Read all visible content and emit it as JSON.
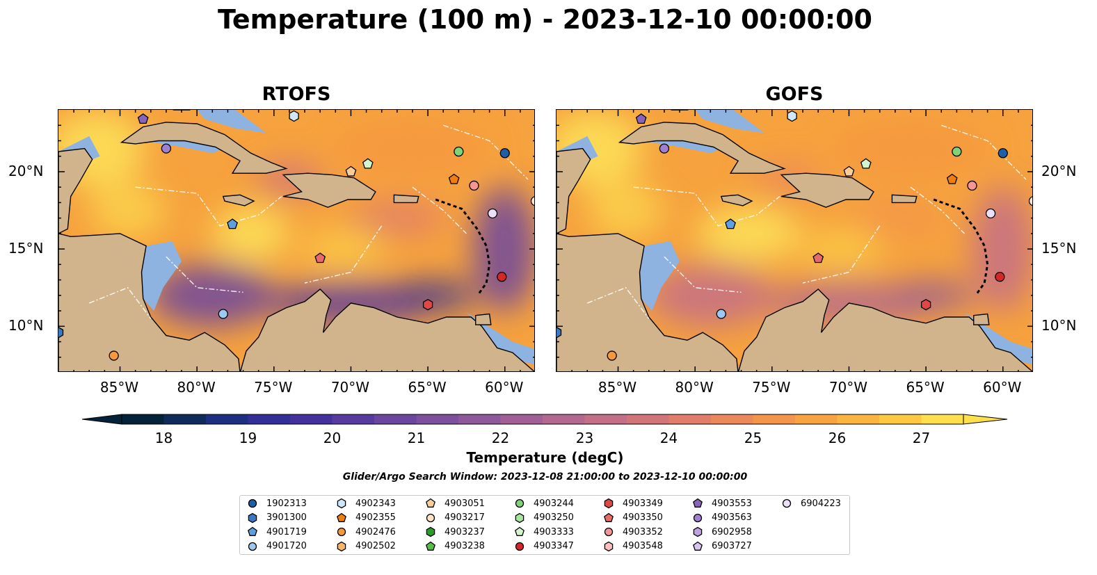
{
  "title": "Temperature (100 m) - 2023-12-10 00:00:00",
  "panels": [
    {
      "id": "rtofs",
      "title": "RTOFS"
    },
    {
      "id": "gofs",
      "title": "GOFS"
    }
  ],
  "map": {
    "lon_range": [
      -89,
      -58
    ],
    "lat_range": [
      7,
      24
    ],
    "x_ticks": [
      "85°W",
      "80°W",
      "75°W",
      "70°W",
      "65°W",
      "60°W"
    ],
    "x_tick_values": [
      -85,
      -80,
      -75,
      -70,
      -65,
      -60
    ],
    "y_ticks": [
      "20°N",
      "15°N",
      "10°N"
    ],
    "y_tick_values": [
      20,
      15,
      10
    ],
    "colors": {
      "land": "#d2b48c",
      "shallow_water": "#8fb3e0",
      "warm": "#f6a23e",
      "hot": "#fde35a"
    }
  },
  "colorbar": {
    "label": "Temperature (degC)",
    "ticks": [
      "18",
      "19",
      "20",
      "21",
      "22",
      "23",
      "24",
      "25",
      "26",
      "27"
    ],
    "min": 18,
    "max": 27,
    "step": 0.5,
    "colormap": [
      "#04233a",
      "#0e2b5a",
      "#1f2f80",
      "#332f96",
      "#45319c",
      "#583b9f",
      "#6b469f",
      "#7d4f9d",
      "#8f589b",
      "#a06096",
      "#b2688f",
      "#c36f87",
      "#d2757a",
      "#e07e6b",
      "#ec895a",
      "#f3954a",
      "#f8a342",
      "#fbb43f",
      "#fdc942",
      "#fde04c"
    ]
  },
  "search_window": "Glider/Argo Search Window: 2023-12-08 21:00:00 to 2023-12-10 00:00:00",
  "legend": [
    {
      "label": "1902313",
      "marker": "circle",
      "color": "#1f5fa8"
    },
    {
      "label": "3901300",
      "marker": "hexagon",
      "color": "#3a78c2"
    },
    {
      "label": "4901719",
      "marker": "pentagon",
      "color": "#5d9fe0"
    },
    {
      "label": "4901720",
      "marker": "circle",
      "color": "#9ec8ef"
    },
    {
      "label": "4902343",
      "marker": "hexagon",
      "color": "#cfe6fb"
    },
    {
      "label": "4902355",
      "marker": "pentagon",
      "color": "#f07d10"
    },
    {
      "label": "4902476",
      "marker": "circle",
      "color": "#f59a3c"
    },
    {
      "label": "4902502",
      "marker": "hexagon",
      "color": "#f9b56b"
    },
    {
      "label": "4903051",
      "marker": "pentagon",
      "color": "#fbcd99"
    },
    {
      "label": "4903217",
      "marker": "circle",
      "color": "#fde5c8"
    },
    {
      "label": "4903237",
      "marker": "hexagon",
      "color": "#2a9c2a"
    },
    {
      "label": "4903238",
      "marker": "pentagon",
      "color": "#55c045"
    },
    {
      "label": "4903244",
      "marker": "circle",
      "color": "#7fd477"
    },
    {
      "label": "4903250",
      "marker": "hexagon",
      "color": "#a8e6a0"
    },
    {
      "label": "4903333",
      "marker": "pentagon",
      "color": "#d2f5cc"
    },
    {
      "label": "4903347",
      "marker": "circle",
      "color": "#d62728"
    },
    {
      "label": "4903349",
      "marker": "hexagon",
      "color": "#e04848"
    },
    {
      "label": "4903350",
      "marker": "pentagon",
      "color": "#ea6a6a"
    },
    {
      "label": "4903352",
      "marker": "circle",
      "color": "#f39696"
    },
    {
      "label": "4903548",
      "marker": "hexagon",
      "color": "#f8c0c0"
    },
    {
      "label": "4903553",
      "marker": "pentagon",
      "color": "#8a63bf"
    },
    {
      "label": "4903563",
      "marker": "circle",
      "color": "#a07fd0"
    },
    {
      "label": "6902958",
      "marker": "hexagon",
      "color": "#bea2e2"
    },
    {
      "label": "6903727",
      "marker": "pentagon",
      "color": "#d8c4f0"
    },
    {
      "label": "6904223",
      "marker": "circle",
      "color": "#ecdff8"
    }
  ],
  "floats": [
    {
      "id": "4903553",
      "lon": -83.5,
      "lat": 23.4
    },
    {
      "id": "4902343",
      "lon": -73.7,
      "lat": 23.6
    },
    {
      "id": "4903563",
      "lon": -82.0,
      "lat": 21.5
    },
    {
      "id": "4903244",
      "lon": -63.0,
      "lat": 21.3
    },
    {
      "id": "1902313",
      "lon": -60.0,
      "lat": 21.2
    },
    {
      "id": "4903051",
      "lon": -70.0,
      "lat": 20.0
    },
    {
      "id": "4903333",
      "lon": -68.9,
      "lat": 20.5
    },
    {
      "id": "4902355",
      "lon": -63.3,
      "lat": 19.5
    },
    {
      "id": "4903352",
      "lon": -62.0,
      "lat": 19.1
    },
    {
      "id": "6904223",
      "lon": -60.8,
      "lat": 17.3
    },
    {
      "id": "4903217",
      "lon": -58.0,
      "lat": 18.1
    },
    {
      "id": "4901719",
      "lon": -77.7,
      "lat": 16.6
    },
    {
      "id": "4903350",
      "lon": -72.0,
      "lat": 14.4
    },
    {
      "id": "4903347",
      "lon": -60.2,
      "lat": 13.2
    },
    {
      "id": "4903349",
      "lon": -65.0,
      "lat": 11.4
    },
    {
      "id": "4901720",
      "lon": -78.3,
      "lat": 10.8
    },
    {
      "id": "4902476",
      "lon": -85.4,
      "lat": 8.1
    },
    {
      "id": "3901300",
      "lon": -89.0,
      "lat": 9.6
    }
  ]
}
